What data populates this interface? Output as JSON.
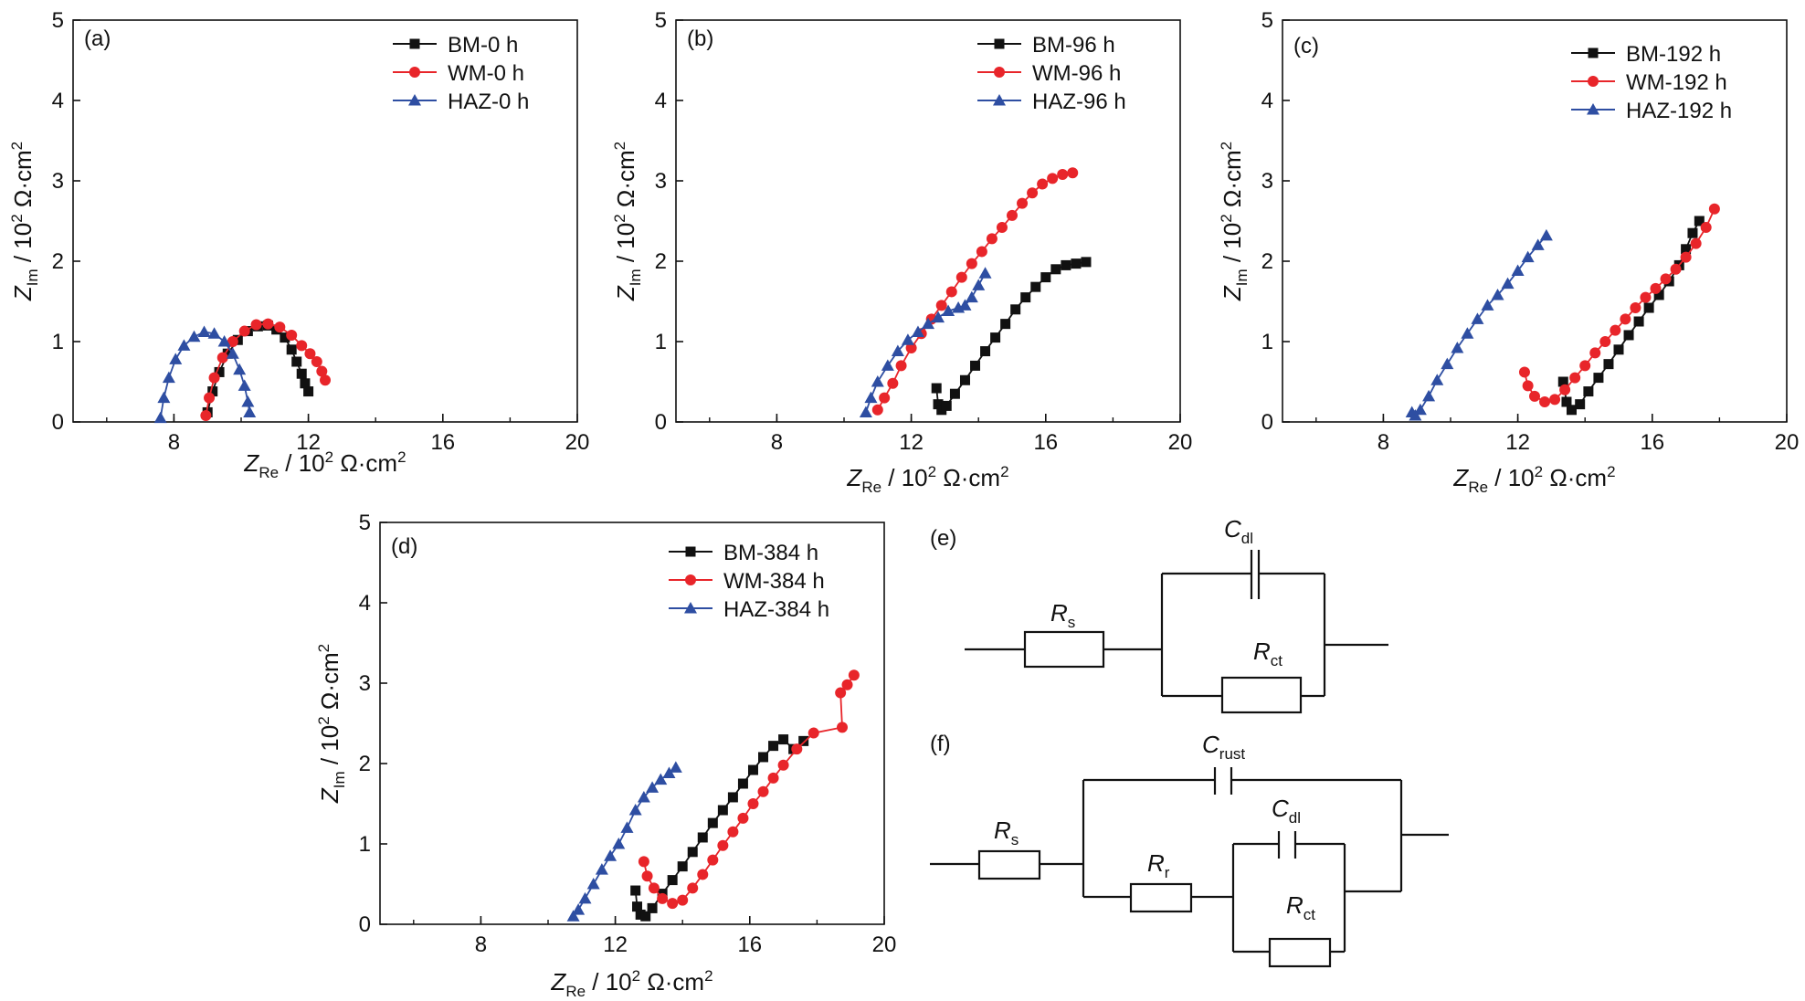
{
  "colors": {
    "BM": "#111111",
    "WM": "#e8252a",
    "HAZ": "#2e4ea2",
    "axis": "#111111"
  },
  "axis_text": {
    "xlabel_main": "Z",
    "xlabel_sub": "Re",
    "xlabel_unit": " / 10",
    "xlabel_sup": "2",
    "xlabel_tail": " Ω·cm",
    "ylabel_main": "Z",
    "ylabel_sub": "Im",
    "ylabel_unit": " / 10",
    "ylabel_sup": "2",
    "ylabel_tail": " Ω·cm",
    "unit_sup": "2"
  },
  "chart_data": [
    {
      "id": "a",
      "type": "scatter",
      "panel_label": "(a)",
      "xlim": [
        5,
        20
      ],
      "ylim": [
        0,
        5
      ],
      "xticks": [
        8,
        12,
        16,
        20
      ],
      "yticks": [
        0,
        1,
        2,
        3,
        4,
        5
      ],
      "legend": [
        "BM-0 h",
        "WM-0 h",
        "HAZ-0 h"
      ],
      "series": [
        {
          "name": "BM-0 h",
          "marker": "square",
          "color": "#111111",
          "x": [
            9.0,
            9.15,
            9.35,
            9.6,
            9.9,
            10.2,
            10.5,
            10.8,
            11.05,
            11.3,
            11.5,
            11.65,
            11.8,
            11.9,
            12.0
          ],
          "y": [
            0.12,
            0.38,
            0.62,
            0.85,
            1.02,
            1.13,
            1.19,
            1.2,
            1.15,
            1.05,
            0.9,
            0.75,
            0.6,
            0.48,
            0.38
          ]
        },
        {
          "name": "WM-0 h",
          "marker": "circle",
          "color": "#e8252a",
          "x": [
            8.95,
            9.05,
            9.2,
            9.45,
            9.75,
            10.1,
            10.45,
            10.8,
            11.15,
            11.5,
            11.8,
            12.05,
            12.25,
            12.4,
            12.5
          ],
          "y": [
            0.08,
            0.3,
            0.55,
            0.8,
            1.0,
            1.13,
            1.21,
            1.22,
            1.18,
            1.08,
            0.95,
            0.85,
            0.75,
            0.63,
            0.52
          ]
        },
        {
          "name": "HAZ-0 h",
          "marker": "triangle",
          "color": "#2e4ea2",
          "x": [
            7.6,
            7.7,
            7.85,
            8.05,
            8.3,
            8.6,
            8.9,
            9.2,
            9.5,
            9.75,
            9.95,
            10.1,
            10.2,
            10.25
          ],
          "y": [
            0.05,
            0.3,
            0.55,
            0.78,
            0.95,
            1.06,
            1.12,
            1.1,
            1.0,
            0.85,
            0.65,
            0.45,
            0.25,
            0.12
          ]
        }
      ]
    },
    {
      "id": "b",
      "type": "scatter",
      "panel_label": "(b)",
      "xlim": [
        5,
        20
      ],
      "ylim": [
        0,
        5
      ],
      "xticks": [
        8,
        12,
        16,
        20
      ],
      "yticks": [
        0,
        1,
        2,
        3,
        4,
        5
      ],
      "legend": [
        "BM-96 h",
        "WM-96 h",
        "HAZ-96 h"
      ],
      "series": [
        {
          "name": "BM-96 h",
          "marker": "square",
          "color": "#111111",
          "x": [
            12.75,
            12.8,
            12.9,
            13.05,
            13.3,
            13.6,
            13.9,
            14.2,
            14.5,
            14.8,
            15.1,
            15.4,
            15.7,
            16.0,
            16.3,
            16.6,
            16.9,
            17.2
          ],
          "y": [
            0.42,
            0.22,
            0.15,
            0.2,
            0.35,
            0.52,
            0.7,
            0.88,
            1.05,
            1.22,
            1.4,
            1.55,
            1.68,
            1.8,
            1.9,
            1.95,
            1.97,
            1.99
          ]
        },
        {
          "name": "WM-96 h",
          "marker": "circle",
          "color": "#e8252a",
          "x": [
            11.0,
            11.2,
            11.45,
            11.7,
            12.0,
            12.3,
            12.6,
            12.9,
            13.2,
            13.5,
            13.8,
            14.1,
            14.4,
            14.7,
            15.0,
            15.3,
            15.6,
            15.9,
            16.2,
            16.5,
            16.8
          ],
          "y": [
            0.15,
            0.3,
            0.48,
            0.7,
            0.92,
            1.1,
            1.28,
            1.45,
            1.62,
            1.8,
            1.97,
            2.12,
            2.28,
            2.42,
            2.57,
            2.72,
            2.85,
            2.96,
            3.03,
            3.08,
            3.1
          ]
        },
        {
          "name": "HAZ-96 h",
          "marker": "triangle",
          "color": "#2e4ea2",
          "x": [
            10.65,
            10.8,
            11.0,
            11.3,
            11.6,
            11.9,
            12.2,
            12.5,
            12.8,
            13.1,
            13.4,
            13.6,
            13.8,
            14.0,
            14.2
          ],
          "y": [
            0.12,
            0.3,
            0.5,
            0.7,
            0.88,
            1.02,
            1.12,
            1.22,
            1.3,
            1.38,
            1.42,
            1.45,
            1.55,
            1.7,
            1.85
          ]
        }
      ]
    },
    {
      "id": "c",
      "type": "scatter",
      "panel_label": "(c)",
      "xlim": [
        5,
        20
      ],
      "ylim": [
        0,
        5
      ],
      "xticks": [
        8,
        12,
        16,
        20
      ],
      "yticks": [
        0,
        1,
        2,
        3,
        4,
        5
      ],
      "legend": [
        "BM-192 h",
        "WM-192 h",
        "HAZ-192 h"
      ],
      "series": [
        {
          "name": "BM-192 h",
          "marker": "square",
          "color": "#111111",
          "x": [
            13.35,
            13.45,
            13.6,
            13.85,
            14.1,
            14.4,
            14.7,
            15.0,
            15.3,
            15.6,
            15.9,
            16.2,
            16.5,
            16.8,
            17.0,
            17.2,
            17.4
          ],
          "y": [
            0.5,
            0.25,
            0.15,
            0.22,
            0.38,
            0.55,
            0.72,
            0.9,
            1.08,
            1.25,
            1.42,
            1.58,
            1.75,
            1.95,
            2.15,
            2.35,
            2.5
          ]
        },
        {
          "name": "WM-192 h",
          "marker": "circle",
          "color": "#e8252a",
          "x": [
            12.2,
            12.3,
            12.5,
            12.8,
            13.1,
            13.4,
            13.7,
            14.0,
            14.3,
            14.6,
            14.9,
            15.2,
            15.5,
            15.8,
            16.1,
            16.4,
            16.7,
            17.0,
            17.3,
            17.6,
            17.85
          ],
          "y": [
            0.62,
            0.45,
            0.32,
            0.25,
            0.28,
            0.4,
            0.55,
            0.7,
            0.86,
            1.0,
            1.14,
            1.28,
            1.42,
            1.55,
            1.66,
            1.78,
            1.9,
            2.05,
            2.22,
            2.42,
            2.65
          ]
        },
        {
          "name": "HAZ-192 h",
          "marker": "triangle",
          "color": "#2e4ea2",
          "x": [
            8.85,
            8.95,
            9.1,
            9.35,
            9.6,
            9.9,
            10.2,
            10.5,
            10.8,
            11.1,
            11.4,
            11.7,
            12.0,
            12.3,
            12.6,
            12.85
          ],
          "y": [
            0.12,
            0.08,
            0.15,
            0.32,
            0.52,
            0.72,
            0.92,
            1.1,
            1.28,
            1.45,
            1.58,
            1.72,
            1.88,
            2.05,
            2.2,
            2.32
          ]
        }
      ]
    },
    {
      "id": "d",
      "type": "scatter",
      "panel_label": "(d)",
      "xlim": [
        5,
        20
      ],
      "ylim": [
        0,
        5
      ],
      "xticks": [
        8,
        12,
        16,
        20
      ],
      "yticks": [
        0,
        1,
        2,
        3,
        4,
        5
      ],
      "legend": [
        "BM-384 h",
        "WM-384 h",
        "HAZ-384 h"
      ],
      "series": [
        {
          "name": "BM-384 h",
          "marker": "square",
          "color": "#111111",
          "x": [
            12.6,
            12.65,
            12.75,
            12.9,
            13.1,
            13.4,
            13.7,
            14.0,
            14.3,
            14.6,
            14.9,
            15.2,
            15.5,
            15.8,
            16.1,
            16.4,
            16.7,
            17.0,
            17.3,
            17.6
          ],
          "y": [
            0.42,
            0.22,
            0.12,
            0.1,
            0.2,
            0.38,
            0.55,
            0.72,
            0.9,
            1.08,
            1.26,
            1.42,
            1.58,
            1.75,
            1.92,
            2.08,
            2.22,
            2.3,
            2.18,
            2.28
          ]
        },
        {
          "name": "WM-384 h",
          "marker": "circle",
          "color": "#e8252a",
          "x": [
            12.85,
            12.95,
            13.15,
            13.4,
            13.7,
            14.0,
            14.3,
            14.6,
            14.9,
            15.2,
            15.5,
            15.8,
            16.1,
            16.4,
            16.7,
            17.0,
            17.4,
            17.9,
            18.75,
            18.7,
            18.9,
            19.1
          ],
          "y": [
            0.78,
            0.6,
            0.45,
            0.32,
            0.26,
            0.3,
            0.45,
            0.62,
            0.8,
            0.98,
            1.15,
            1.32,
            1.5,
            1.65,
            1.82,
            1.98,
            2.18,
            2.38,
            2.45,
            2.88,
            2.98,
            3.1
          ]
        },
        {
          "name": "HAZ-384 h",
          "marker": "triangle",
          "color": "#2e4ea2",
          "x": [
            10.75,
            10.9,
            11.1,
            11.35,
            11.6,
            11.85,
            12.1,
            12.35,
            12.6,
            12.85,
            13.1,
            13.35,
            13.6,
            13.8
          ],
          "y": [
            0.1,
            0.18,
            0.32,
            0.5,
            0.68,
            0.85,
            1.0,
            1.2,
            1.42,
            1.58,
            1.7,
            1.8,
            1.88,
            1.95
          ]
        }
      ]
    }
  ],
  "circuits": {
    "e": {
      "label": "(e)",
      "Rs": "R",
      "Rs_sub": "s",
      "Cdl": "C",
      "Cdl_sub": "dl",
      "Rct": "R",
      "Rct_sub": "ct"
    },
    "f": {
      "label": "(f)",
      "Rs": "R",
      "Rs_sub": "s",
      "Crust": "C",
      "Crust_sub": "rust",
      "Rr": "R",
      "Rr_sub": "r",
      "Cdl": "C",
      "Cdl_sub": "dl",
      "Rct": "R",
      "Rct_sub": "ct"
    }
  }
}
